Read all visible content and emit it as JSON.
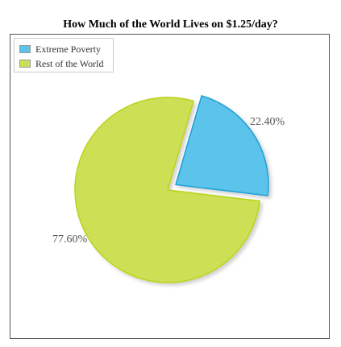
{
  "chart_data": {
    "type": "pie",
    "title": "How Much of the World Lives on $1.25/day?",
    "legend_position": "top-left",
    "categories": [
      "Extreme Poverty",
      "Rest of the World"
    ],
    "values": [
      22.4,
      77.6
    ],
    "value_labels": [
      "22.40%",
      "77.60%"
    ],
    "colors": [
      "#5bc3ea",
      "#cddf54"
    ],
    "stroke_colors": [
      "#1fa0d8",
      "#b9d31a"
    ],
    "exploded": [
      true,
      false
    ]
  }
}
